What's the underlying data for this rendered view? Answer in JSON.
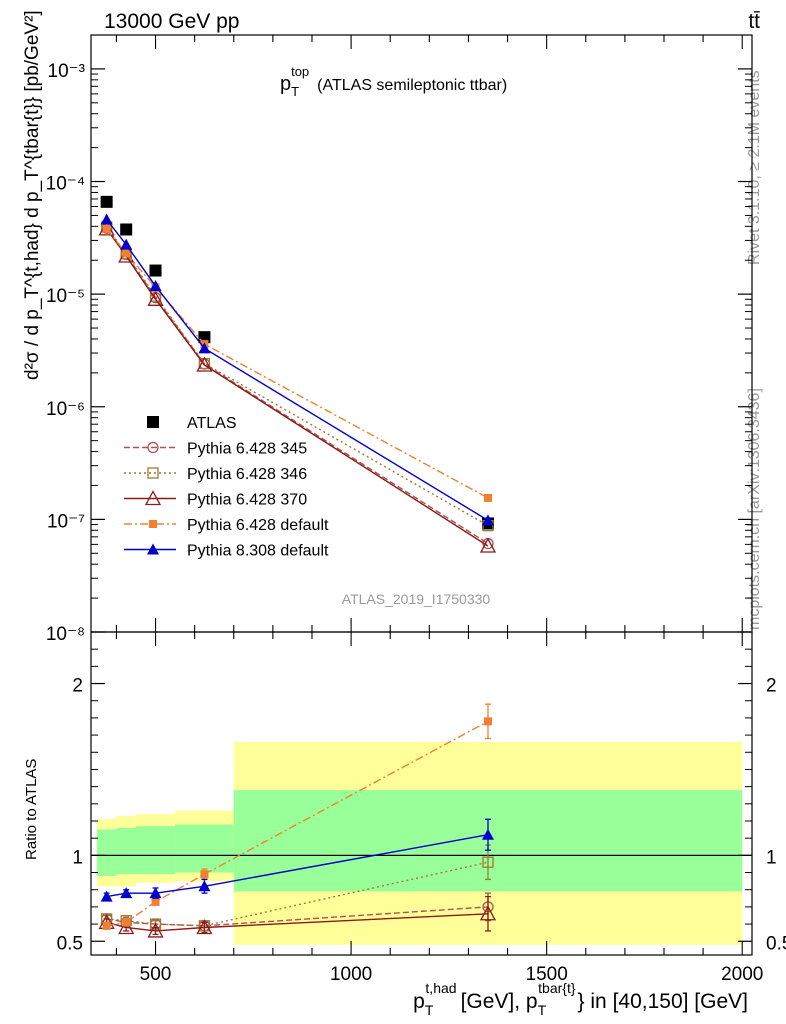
{
  "header": {
    "left": "13000 GeV pp",
    "right": "tt̄",
    "side_top": "Rivet 3.1.10, ≥ 2.1M events",
    "side_bottom": "mcplots.cern.ch [arXiv:1306.3436]"
  },
  "chart_data": [
    {
      "type": "line",
      "panel": "main",
      "title": "p_T^top (ATLAS semileptonic ttbar)",
      "title_main": "p",
      "title_sub": "T",
      "title_sup": "top",
      "title_rest": "(ATLAS semileptonic ttbar)",
      "ylabel": "d²σ / d p_T^{t,had} d p_T^{tbar{t}} [pb/GeV²]",
      "analysis_label": "ATLAS_2019_I1750330",
      "yscale": "log",
      "xlim": [
        335,
        2025
      ],
      "ylim": [
        1e-08,
        0.002
      ],
      "y_tick_labels": [
        "10⁻⁸",
        "10⁻⁷",
        "10⁻⁶",
        "10⁻⁵",
        "10⁻⁴",
        "10⁻³"
      ],
      "x": [
        375,
        425,
        500,
        625,
        1350
      ],
      "legend_position": "middle-left",
      "series": [
        {
          "name": "ATLAS",
          "marker": "square",
          "color": "#000000",
          "linestyle": "none",
          "values": [
            6.6e-05,
            3.75e-05,
            1.62e-05,
            4.15e-06,
            9.2e-08
          ]
        },
        {
          "name": "Pythia 6.428 345",
          "marker": "circle-open",
          "color": "#b05050",
          "linestyle": "dashed",
          "values": [
            3.85e-05,
            2.25e-05,
            9.3e-06,
            2.4e-06,
            6.1e-08
          ]
        },
        {
          "name": "Pythia 6.428 346",
          "marker": "square-open",
          "color": "#a07830",
          "linestyle": "dotted",
          "values": [
            3.95e-05,
            2.28e-05,
            9.6e-06,
            2.42e-06,
            8.8e-08
          ]
        },
        {
          "name": "Pythia 6.428 370",
          "marker": "triangle-open",
          "color": "#8b1a1a",
          "linestyle": "solid",
          "values": [
            3.8e-05,
            2.18e-05,
            9e-06,
            2.35e-06,
            5.8e-08
          ]
        },
        {
          "name": "Pythia 6.428 default",
          "marker": "square-small",
          "color": "#f08030",
          "linestyle": "dashdot",
          "values": [
            3.8e-05,
            2.3e-05,
            1.15e-05,
            3.6e-06,
            1.55e-07
          ]
        },
        {
          "name": "Pythia 8.308 default",
          "marker": "triangle",
          "color": "#0000cc",
          "linestyle": "solid",
          "values": [
            4.6e-05,
            2.75e-05,
            1.18e-05,
            3.3e-06,
            9.8e-08
          ]
        }
      ]
    },
    {
      "type": "line",
      "panel": "ratio",
      "ylabel": "Ratio to ATLAS",
      "xlabel": "p_T^{t,had} [GeV], p_T^{tbar{t}} in [40,150] [GeV]",
      "xlabel_parts": {
        "a": "p",
        "a_sub": "T",
        "a_sup": "t,had",
        "b": "[GeV], p",
        "b_sub": "T",
        "b_sup": "tbar{t}",
        "c": "} in [40,150] [GeV]"
      },
      "xlim": [
        335,
        2025
      ],
      "ylim": [
        0.42,
        2.3
      ],
      "x_tick_labels": [
        "500",
        "1000",
        "1500",
        "2000"
      ],
      "x_ticks": [
        500,
        1000,
        1500,
        2000
      ],
      "y_tick_labels": [
        "0.5",
        "1",
        "2"
      ],
      "y_ticks": [
        0.5,
        1,
        2
      ],
      "x": [
        375,
        425,
        500,
        625,
        1350
      ],
      "bands": [
        {
          "name": "yellow-outer",
          "color": "#ffff99",
          "bins": [
            [
              350,
              400,
              0.82,
              1.21
            ],
            [
              400,
              450,
              0.82,
              1.23
            ],
            [
              450,
              550,
              0.84,
              1.24
            ],
            [
              550,
              700,
              0.85,
              1.26
            ],
            [
              700,
              2000,
              0.48,
              1.66
            ]
          ]
        },
        {
          "name": "green-inner",
          "color": "#99ff99",
          "bins": [
            [
              350,
              400,
              0.88,
              1.15
            ],
            [
              400,
              450,
              0.89,
              1.16
            ],
            [
              450,
              550,
              0.89,
              1.17
            ],
            [
              550,
              700,
              0.9,
              1.18
            ],
            [
              700,
              2000,
              0.79,
              1.38
            ]
          ]
        }
      ],
      "series": [
        {
          "name": "Pythia 6.428 345",
          "values": [
            0.63,
            0.61,
            0.6,
            0.59,
            0.7
          ],
          "err": [
            0.02,
            0.02,
            0.02,
            0.03,
            0.08
          ]
        },
        {
          "name": "Pythia 6.428 346",
          "values": [
            0.63,
            0.62,
            0.6,
            0.59,
            0.96
          ],
          "err": [
            0.02,
            0.02,
            0.02,
            0.03,
            0.1
          ]
        },
        {
          "name": "Pythia 6.428 370",
          "values": [
            0.61,
            0.58,
            0.56,
            0.58,
            0.66
          ],
          "err": [
            0.02,
            0.02,
            0.02,
            0.03,
            0.1
          ]
        },
        {
          "name": "Pythia 6.428 default",
          "values": [
            0.59,
            0.61,
            0.73,
            0.89,
            1.78
          ],
          "err": [
            0.02,
            0.02,
            0.02,
            0.03,
            0.1
          ]
        },
        {
          "name": "Pythia 8.308 default",
          "values": [
            0.76,
            0.78,
            0.78,
            0.82,
            1.12
          ],
          "err": [
            0.02,
            0.02,
            0.03,
            0.04,
            0.09
          ]
        }
      ]
    }
  ]
}
